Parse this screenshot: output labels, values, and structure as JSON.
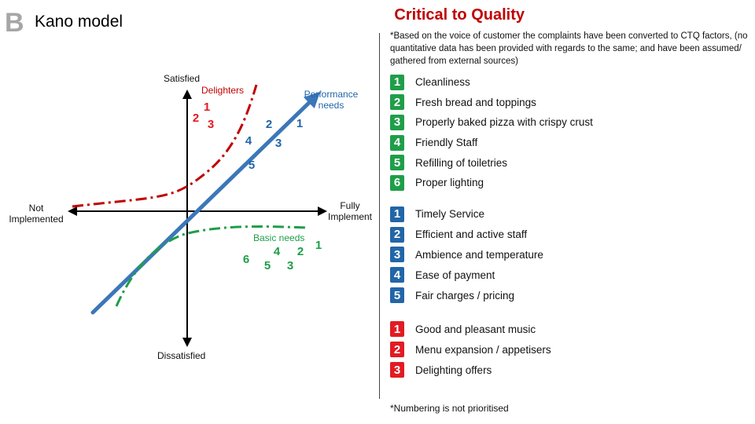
{
  "header": {
    "section_letter": "B",
    "title": "Kano model",
    "ctq_title": "Critical to Quality",
    "note": "*Based on the voice of customer the complaints have been converted to CTQ factors, (no quantitative data has been provided with regards to the same; and have been assumed/ gathered from external sources)",
    "footnote": "*Numbering is not prioritised"
  },
  "colors": {
    "green": "#1f9e49",
    "blue": "#2266a8",
    "red": "#e21b23",
    "basic_curve": "#1f9e49",
    "performance_line": "#3b77b8",
    "delighter_curve": "#c00000"
  },
  "diagram": {
    "axis_labels": {
      "top": "Satisfied",
      "bottom": "Dissatisfied",
      "left": "Not Implemented",
      "right": "Fully Implement"
    },
    "curve_labels": {
      "delighters": "Delighters",
      "performance": "Performance needs",
      "basic": "Basic needs"
    },
    "delighter_markers": [
      "1",
      "2",
      "3"
    ],
    "performance_markers": [
      "2",
      "1",
      "4",
      "3",
      "5"
    ],
    "basic_markers": [
      "1",
      "4",
      "2",
      "6",
      "5",
      "3"
    ]
  },
  "legend": {
    "basic": [
      {
        "num": "1",
        "text": "Cleanliness"
      },
      {
        "num": "2",
        "text": "Fresh bread and toppings"
      },
      {
        "num": "3",
        "text": "Properly baked pizza with crispy crust"
      },
      {
        "num": "4",
        "text": "Friendly Staff"
      },
      {
        "num": "5",
        "text": "Refilling of toiletries"
      },
      {
        "num": "6",
        "text": "Proper lighting"
      }
    ],
    "performance": [
      {
        "num": "1",
        "text": "Timely Service"
      },
      {
        "num": "2",
        "text": "Efficient and active staff"
      },
      {
        "num": "3",
        "text": "Ambience and temperature"
      },
      {
        "num": "4",
        "text": "Ease of payment"
      },
      {
        "num": "5",
        "text": "Fair charges / pricing"
      }
    ],
    "delighters": [
      {
        "num": "1",
        "text": "Good and pleasant music"
      },
      {
        "num": "2",
        "text": "Menu expansion / appetisers"
      },
      {
        "num": "3",
        "text": "Delighting offers"
      }
    ]
  }
}
